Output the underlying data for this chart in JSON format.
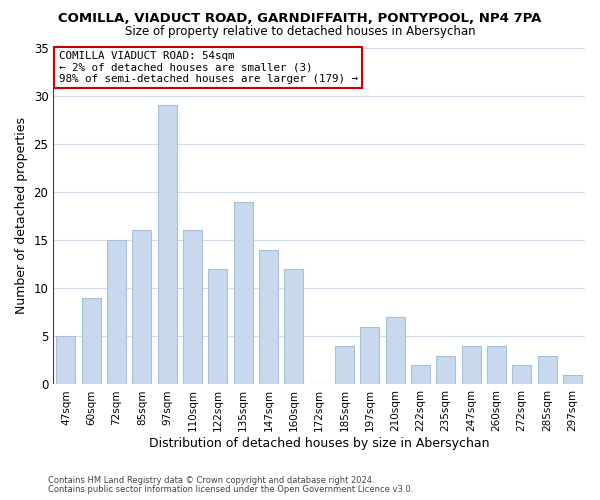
{
  "title": "COMILLA, VIADUCT ROAD, GARNDIFFAITH, PONTYPOOL, NP4 7PA",
  "subtitle": "Size of property relative to detached houses in Abersychan",
  "xlabel": "Distribution of detached houses by size in Abersychan",
  "ylabel": "Number of detached properties",
  "bar_color": "#c8d9ee",
  "bar_edge_color": "#a8bfd8",
  "categories": [
    "47sqm",
    "60sqm",
    "72sqm",
    "85sqm",
    "97sqm",
    "110sqm",
    "122sqm",
    "135sqm",
    "147sqm",
    "160sqm",
    "172sqm",
    "185sqm",
    "197sqm",
    "210sqm",
    "222sqm",
    "235sqm",
    "247sqm",
    "260sqm",
    "272sqm",
    "285sqm",
    "297sqm"
  ],
  "values": [
    5,
    9,
    15,
    16,
    29,
    16,
    12,
    19,
    14,
    12,
    0,
    4,
    6,
    7,
    2,
    3,
    4,
    4,
    2,
    3,
    1
  ],
  "ylim": [
    0,
    35
  ],
  "yticks": [
    0,
    5,
    10,
    15,
    20,
    25,
    30,
    35
  ],
  "annotation_box_text": "COMILLA VIADUCT ROAD: 54sqm\n← 2% of detached houses are smaller (3)\n98% of semi-detached houses are larger (179) →",
  "annotation_box_color": "#ffffff",
  "annotation_box_edge_color": "#cc0000",
  "vline_color": "#cc0000",
  "footer1": "Contains HM Land Registry data © Crown copyright and database right 2024.",
  "footer2": "Contains public sector information licensed under the Open Government Licence v3.0.",
  "background_color": "#ffffff",
  "grid_color": "#d0dce8"
}
